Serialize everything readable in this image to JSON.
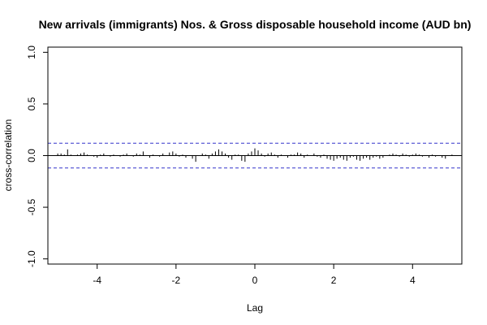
{
  "chart_data": {
    "type": "bar",
    "title": "New arrivals (immigrants) Nos. & Gross disposable household income (AUD bn)",
    "xlabel": "Lag",
    "ylabel": "cross-correlation",
    "xlim": [
      -5.25,
      5.25
    ],
    "ylim": [
      -1.05,
      1.05
    ],
    "x_ticks": [
      -4,
      -2,
      0,
      2,
      4
    ],
    "x_tick_labels": [
      "-4",
      "-2",
      "0",
      "2",
      "4"
    ],
    "y_ticks": [
      -1.0,
      -0.5,
      0.0,
      0.5,
      1.0
    ],
    "y_tick_labels": [
      "-1.0",
      "-0.5",
      "0.0",
      "0.5",
      "1.0"
    ],
    "confidence_bounds": [
      0.12,
      -0.12
    ],
    "lag_step": 0.0833,
    "lags": [
      -5.0,
      -4.917,
      -4.833,
      -4.75,
      -4.667,
      -4.583,
      -4.5,
      -4.417,
      -4.333,
      -4.25,
      -4.167,
      -4.083,
      -4.0,
      -3.917,
      -3.833,
      -3.75,
      -3.667,
      -3.583,
      -3.5,
      -3.417,
      -3.333,
      -3.25,
      -3.167,
      -3.083,
      -3.0,
      -2.917,
      -2.833,
      -2.75,
      -2.667,
      -2.583,
      -2.5,
      -2.417,
      -2.333,
      -2.25,
      -2.167,
      -2.083,
      -2.0,
      -1.917,
      -1.833,
      -1.75,
      -1.667,
      -1.583,
      -1.5,
      -1.417,
      -1.333,
      -1.25,
      -1.167,
      -1.083,
      -1.0,
      -0.917,
      -0.833,
      -0.75,
      -0.667,
      -0.583,
      -0.5,
      -0.417,
      -0.333,
      -0.25,
      -0.167,
      -0.083,
      0.0,
      0.083,
      0.167,
      0.25,
      0.333,
      0.417,
      0.5,
      0.583,
      0.667,
      0.75,
      0.833,
      0.917,
      1.0,
      1.083,
      1.167,
      1.25,
      1.333,
      1.417,
      1.5,
      1.583,
      1.667,
      1.75,
      1.833,
      1.917,
      2.0,
      2.083,
      2.167,
      2.25,
      2.333,
      2.417,
      2.5,
      2.583,
      2.667,
      2.75,
      2.833,
      2.917,
      3.0,
      3.083,
      3.167,
      3.25,
      3.333,
      3.417,
      3.5,
      3.583,
      3.667,
      3.75,
      3.833,
      3.917,
      4.0,
      4.083,
      4.167,
      4.25,
      4.333,
      4.417,
      4.5,
      4.583,
      4.667,
      4.75,
      4.833,
      4.917,
      5.0
    ],
    "values": [
      0.02,
      0.02,
      0.01,
      0.06,
      0.01,
      0.0,
      0.01,
      0.02,
      0.03,
      0.01,
      0.0,
      -0.01,
      -0.02,
      0.01,
      0.02,
      0.0,
      -0.01,
      0.01,
      0.0,
      -0.01,
      0.01,
      0.02,
      0.0,
      -0.01,
      0.02,
      0.01,
      0.04,
      0.0,
      -0.02,
      0.01,
      0.0,
      -0.01,
      0.02,
      0.0,
      0.03,
      0.04,
      0.02,
      -0.01,
      0.01,
      -0.02,
      0.0,
      -0.03,
      -0.06,
      0.0,
      0.02,
      0.01,
      -0.03,
      0.02,
      0.04,
      0.06,
      0.04,
      0.02,
      -0.02,
      -0.04,
      0.01,
      0.01,
      -0.05,
      -0.06,
      0.02,
      0.04,
      0.07,
      0.05,
      0.02,
      -0.01,
      0.02,
      0.03,
      0.01,
      -0.02,
      0.01,
      0.0,
      -0.02,
      0.01,
      0.01,
      0.03,
      0.02,
      -0.02,
      0.01,
      0.0,
      0.02,
      -0.01,
      -0.02,
      0.01,
      -0.03,
      -0.04,
      -0.05,
      -0.03,
      -0.02,
      -0.04,
      -0.05,
      -0.02,
      -0.01,
      -0.04,
      -0.05,
      -0.03,
      -0.02,
      -0.04,
      -0.02,
      -0.01,
      -0.03,
      -0.02,
      0.0,
      0.01,
      0.02,
      0.01,
      -0.01,
      0.02,
      0.01,
      -0.01,
      0.01,
      0.02,
      0.01,
      -0.01,
      0.0,
      -0.02,
      0.01,
      -0.01,
      0.0,
      -0.02,
      -0.03,
      0.0,
      0.01
    ],
    "colors": {
      "bars": "#000000",
      "bounds": "#3333cc",
      "zero_line": "#000000",
      "frame": "#000000"
    }
  }
}
